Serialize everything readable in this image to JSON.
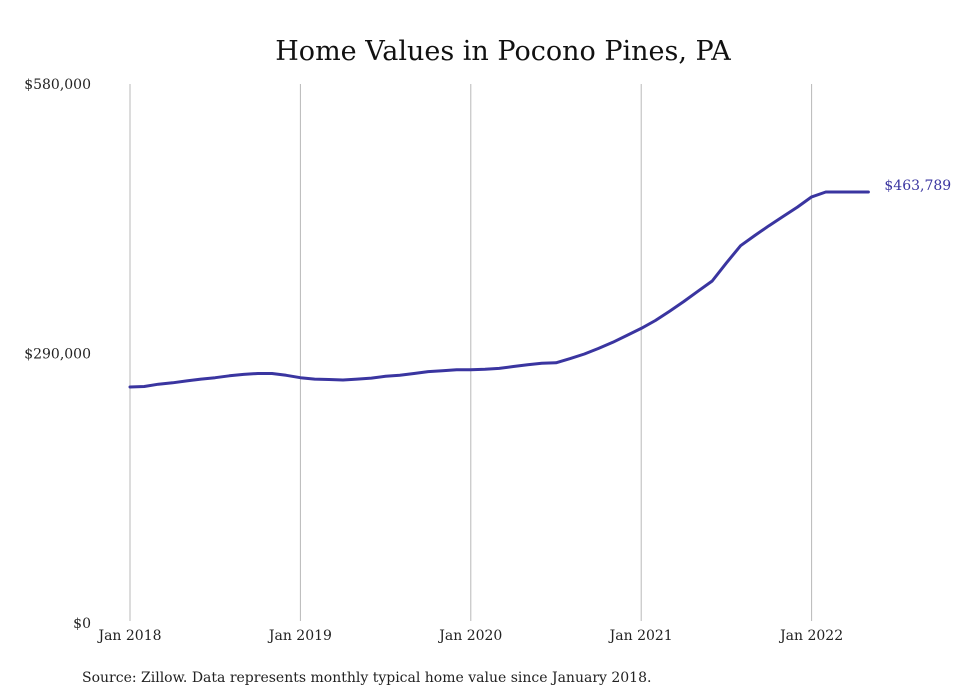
{
  "chart_data": {
    "type": "line",
    "title": "Home Values in Pocono Pines, PA",
    "source_note": "Source: Zillow. Data represents monthly typical home value since January 2018.",
    "ylim": [
      0,
      580000
    ],
    "y_ticks": [
      0,
      290000,
      580000
    ],
    "y_tick_labels": [
      "$0",
      "$290,000",
      "$580,000"
    ],
    "x_ticks": [
      "2018-01",
      "2019-01",
      "2020-01",
      "2021-01",
      "2022-01"
    ],
    "x_tick_labels": [
      "Jan 2018",
      "Jan 2019",
      "Jan 2020",
      "Jan 2021",
      "Jan 2022"
    ],
    "grid": {
      "vertical": true,
      "horizontal": false
    },
    "line_color": "#3a35a0",
    "end_label": "$463,789",
    "series": [
      {
        "x": [
          "2018-01",
          "2018-02",
          "2018-03",
          "2018-04",
          "2018-05",
          "2018-06",
          "2018-07",
          "2018-08",
          "2018-09",
          "2018-10",
          "2018-11",
          "2018-12",
          "2019-01",
          "2019-02",
          "2019-03",
          "2019-04",
          "2019-05",
          "2019-06",
          "2019-07",
          "2019-08",
          "2019-09",
          "2019-10",
          "2019-11",
          "2019-12",
          "2020-01",
          "2020-02",
          "2020-03",
          "2020-04",
          "2020-05",
          "2020-06",
          "2020-07",
          "2020-08",
          "2020-09",
          "2020-10",
          "2020-11",
          "2020-12",
          "2021-01",
          "2021-02",
          "2021-03",
          "2021-04",
          "2021-05",
          "2021-06",
          "2021-07",
          "2021-08",
          "2021-09",
          "2021-10",
          "2021-11",
          "2021-12",
          "2022-01",
          "2022-02",
          "2022-03",
          "2022-04",
          "2022-05"
        ],
        "values": [
          254000,
          254500,
          257000,
          258500,
          260500,
          262500,
          264000,
          266000,
          267500,
          268500,
          268500,
          266500,
          264000,
          262500,
          262000,
          261500,
          262500,
          263500,
          265500,
          266500,
          268500,
          270500,
          271500,
          272500,
          272500,
          273000,
          274000,
          276000,
          278000,
          279500,
          280000,
          284500,
          289500,
          295500,
          302000,
          309500,
          317000,
          325500,
          335500,
          346000,
          357000,
          368000,
          387500,
          406000,
          417000,
          427500,
          437500,
          447500,
          458500,
          463789,
          463789,
          463789,
          463789
        ]
      }
    ]
  }
}
